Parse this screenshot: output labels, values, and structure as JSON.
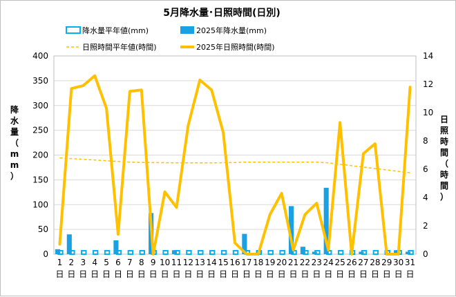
{
  "chart_data": {
    "type": "bar",
    "title": "5月降水量･日照時間(日別)",
    "categories": [
      "1",
      "2",
      "3",
      "4",
      "5",
      "6",
      "7",
      "8",
      "9",
      "10",
      "11",
      "12",
      "13",
      "14",
      "15",
      "16",
      "17",
      "18",
      "19",
      "20",
      "21",
      "22",
      "23",
      "24",
      "25",
      "26",
      "27",
      "28",
      "29",
      "30",
      "31"
    ],
    "category_suffix": "日",
    "ylabel_left": "降水量（mm）",
    "ylabel_right": "日照時間（時間）",
    "ylim_left": [
      0,
      400
    ],
    "ylim_right": [
      0,
      14
    ],
    "yticks_left": [
      "0",
      "50",
      "100",
      "150",
      "200",
      "250",
      "300",
      "350",
      "400"
    ],
    "yticks_right": [
      "0",
      "2",
      "4",
      "6",
      "8",
      "10",
      "12",
      "14"
    ],
    "grid": true,
    "legend_position": "top",
    "series": [
      {
        "name": "降水量平年値(mm)",
        "kind": "bar-outline",
        "axis": "left",
        "color": "#00B0F0",
        "values": [
          7,
          7,
          7,
          7,
          7,
          7,
          7,
          7,
          7,
          7,
          7,
          7,
          7,
          7,
          7,
          7,
          7,
          7,
          7,
          7,
          7,
          7,
          7,
          7,
          7,
          7,
          7,
          7,
          7,
          7,
          7
        ]
      },
      {
        "name": "2025年降水量(mm)",
        "kind": "bar",
        "axis": "left",
        "color": "#1BA1E2",
        "values": [
          10,
          40,
          0,
          0,
          0,
          28,
          0,
          0,
          83,
          0,
          8,
          0,
          0,
          0,
          0,
          0,
          41,
          0,
          0,
          0,
          97,
          15,
          5,
          134,
          0,
          0,
          5,
          0,
          0,
          8,
          5
        ]
      },
      {
        "name": "日照時間平年値(時間)",
        "kind": "line-dashed",
        "axis": "right",
        "color": "#FFC000",
        "values": [
          6.8,
          6.75,
          6.7,
          6.65,
          6.6,
          6.55,
          6.5,
          6.48,
          6.47,
          6.46,
          6.45,
          6.45,
          6.45,
          6.45,
          6.46,
          6.47,
          6.5,
          6.5,
          6.5,
          6.5,
          6.5,
          6.5,
          6.5,
          6.45,
          6.35,
          6.25,
          6.15,
          6.05,
          5.95,
          5.85,
          5.75
        ]
      },
      {
        "name": "2025年日照時間(時間)",
        "kind": "line",
        "axis": "right",
        "color": "#FFC000",
        "values": [
          0.7,
          11.7,
          11.9,
          12.6,
          10.3,
          1.4,
          11.5,
          11.6,
          0,
          4.4,
          3.3,
          9.1,
          12.3,
          11.6,
          8.6,
          0.8,
          0,
          0,
          2.8,
          4.3,
          0.3,
          2.8,
          3.6,
          0.3,
          9.3,
          0,
          7.1,
          7.8,
          0,
          0,
          11.8
        ]
      }
    ]
  }
}
